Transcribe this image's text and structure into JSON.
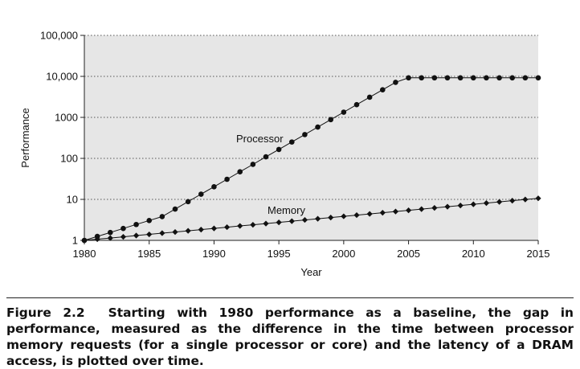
{
  "chart_data": {
    "type": "line",
    "xlabel": "Year",
    "ylabel": "Performance",
    "x_ticks": [
      "1980",
      "1985",
      "1990",
      "1995",
      "2000",
      "2005",
      "2010",
      "2015"
    ],
    "y_ticks": [
      "1",
      "10",
      "100",
      "1000",
      "10,000",
      "100,000"
    ],
    "y_tick_values": [
      1,
      10,
      100,
      1000,
      10000,
      100000
    ],
    "xlim": [
      1980,
      2015
    ],
    "ylim": [
      1,
      100000
    ],
    "y_scale": "log",
    "grid": "horizontal dotted",
    "plot_background": "#e6e6e6",
    "x": [
      1980,
      1981,
      1982,
      1983,
      1984,
      1985,
      1986,
      1987,
      1988,
      1989,
      1990,
      1991,
      1992,
      1993,
      1994,
      1995,
      1996,
      1997,
      1998,
      1999,
      2000,
      2001,
      2002,
      2003,
      2004,
      2005,
      2006,
      2007,
      2008,
      2009,
      2010,
      2011,
      2012,
      2013,
      2014,
      2015
    ],
    "series": [
      {
        "name": "Processor",
        "marker": "circle",
        "values": [
          1,
          1.25,
          1.56,
          1.95,
          2.44,
          3.05,
          3.8,
          5.8,
          8.8,
          13.4,
          20.3,
          30.9,
          47,
          71.4,
          109,
          165,
          251,
          381,
          580,
          880,
          1340,
          2040,
          3100,
          4700,
          7150,
          9200,
          9200,
          9200,
          9200,
          9200,
          9200,
          9200,
          9200,
          9200,
          9200,
          9200
        ]
      },
      {
        "name": "Memory",
        "marker": "diamond",
        "values": [
          1,
          1.07,
          1.14,
          1.22,
          1.31,
          1.4,
          1.5,
          1.6,
          1.71,
          1.83,
          1.96,
          2.1,
          2.25,
          2.4,
          2.57,
          2.75,
          2.94,
          3.15,
          3.37,
          3.6,
          3.86,
          4.13,
          4.42,
          4.72,
          5.06,
          5.41,
          5.79,
          6.19,
          6.63,
          7.09,
          7.59,
          8.12,
          8.69,
          9.3,
          9.95,
          10.6
        ]
      }
    ]
  },
  "caption": {
    "figure_label": "Figure 2.2",
    "text": "Starting with 1980 performance as a baseline, the gap in performance, measured as the difference in the time between processor memory requests (for a single processor or core) and the latency of a DRAM access, is plotted over time."
  }
}
